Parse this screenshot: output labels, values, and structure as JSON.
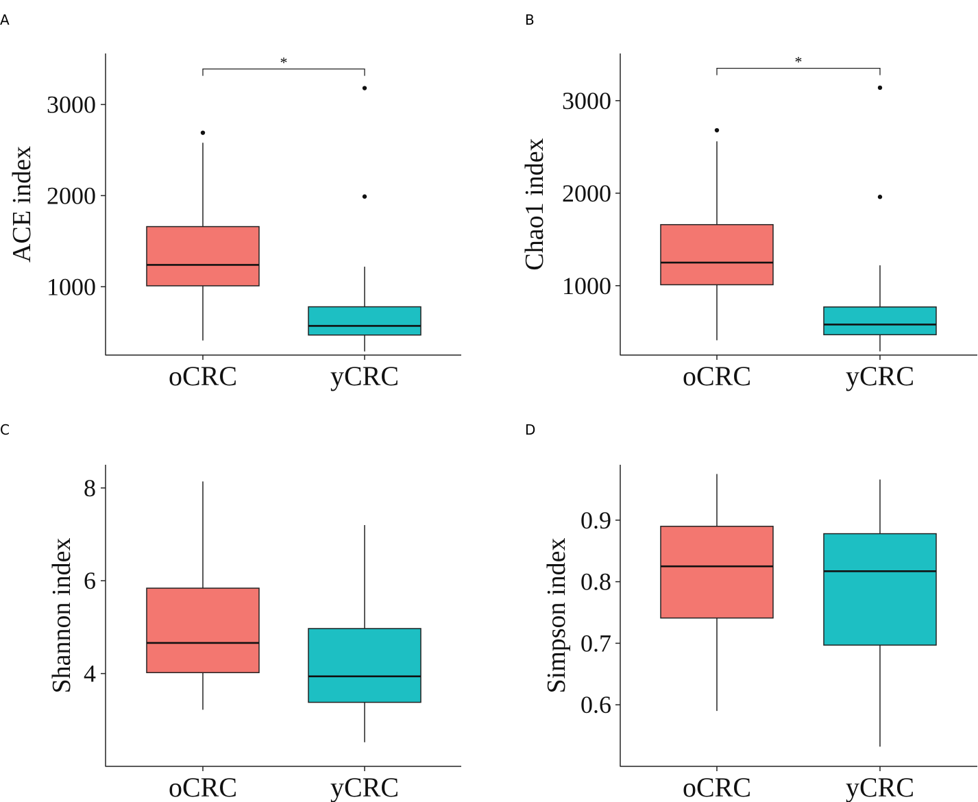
{
  "chart_data": [
    {
      "panel": "A",
      "type": "box",
      "ylabel": "ACE index",
      "categories": [
        "oCRC",
        "yCRC"
      ],
      "colors": [
        "#F37770",
        "#1DBFC3"
      ],
      "ylim": [
        250,
        3560
      ],
      "yticks": [
        1000,
        2000,
        3000
      ],
      "yticklabels": [
        "1000",
        "2000",
        "3000"
      ],
      "boxes": [
        {
          "category": "oCRC",
          "whisker_low": 410,
          "q1": 1010,
          "median": 1240,
          "q3": 1660,
          "whisker_high": 2580,
          "outliers": [
            2690
          ]
        },
        {
          "category": "yCRC",
          "whisker_low": 290,
          "q1": 470,
          "median": 570,
          "q3": 780,
          "whisker_high": 1220,
          "outliers": [
            1990,
            3180
          ]
        }
      ],
      "significance": {
        "from": "oCRC",
        "to": "yCRC",
        "y": 3390,
        "label": "*"
      }
    },
    {
      "panel": "B",
      "type": "box",
      "ylabel": "Chao1 index",
      "categories": [
        "oCRC",
        "yCRC"
      ],
      "colors": [
        "#F37770",
        "#1DBFC3"
      ],
      "ylim": [
        250,
        3510
      ],
      "yticks": [
        1000,
        2000,
        3000
      ],
      "yticklabels": [
        "1000",
        "2000",
        "3000"
      ],
      "boxes": [
        {
          "category": "oCRC",
          "whisker_low": 410,
          "q1": 1010,
          "median": 1250,
          "q3": 1660,
          "whisker_high": 2560,
          "outliers": [
            2680
          ]
        },
        {
          "category": "yCRC",
          "whisker_low": 290,
          "q1": 470,
          "median": 580,
          "q3": 770,
          "whisker_high": 1220,
          "outliers": [
            1960,
            3140
          ]
        }
      ],
      "significance": {
        "from": "oCRC",
        "to": "yCRC",
        "y": 3350,
        "label": "*"
      }
    },
    {
      "panel": "C",
      "type": "box",
      "ylabel": "Shannon index",
      "categories": [
        "oCRC",
        "yCRC"
      ],
      "colors": [
        "#F37770",
        "#1DBFC3"
      ],
      "ylim": [
        2.0,
        8.5
      ],
      "yticks": [
        4,
        6,
        8
      ],
      "yticklabels": [
        "4",
        "6",
        "8"
      ],
      "boxes": [
        {
          "category": "oCRC",
          "whisker_low": 3.22,
          "q1": 4.02,
          "median": 4.66,
          "q3": 5.84,
          "whisker_high": 8.14,
          "outliers": []
        },
        {
          "category": "yCRC",
          "whisker_low": 2.52,
          "q1": 3.38,
          "median": 3.94,
          "q3": 4.97,
          "whisker_high": 7.2,
          "outliers": []
        }
      ]
    },
    {
      "panel": "D",
      "type": "box",
      "ylabel": "Simpson index",
      "categories": [
        "oCRC",
        "yCRC"
      ],
      "colors": [
        "#F37770",
        "#1DBFC3"
      ],
      "ylim": [
        0.5,
        0.99
      ],
      "yticks": [
        0.6,
        0.7,
        0.8,
        0.9
      ],
      "yticklabels": [
        "0.6",
        "0.7",
        "0.8",
        "0.9"
      ],
      "boxes": [
        {
          "category": "oCRC",
          "whisker_low": 0.59,
          "q1": 0.741,
          "median": 0.825,
          "q3": 0.89,
          "whisker_high": 0.975,
          "outliers": []
        },
        {
          "category": "yCRC",
          "whisker_low": 0.532,
          "q1": 0.697,
          "median": 0.817,
          "q3": 0.878,
          "whisker_high": 0.966,
          "outliers": []
        }
      ]
    }
  ]
}
